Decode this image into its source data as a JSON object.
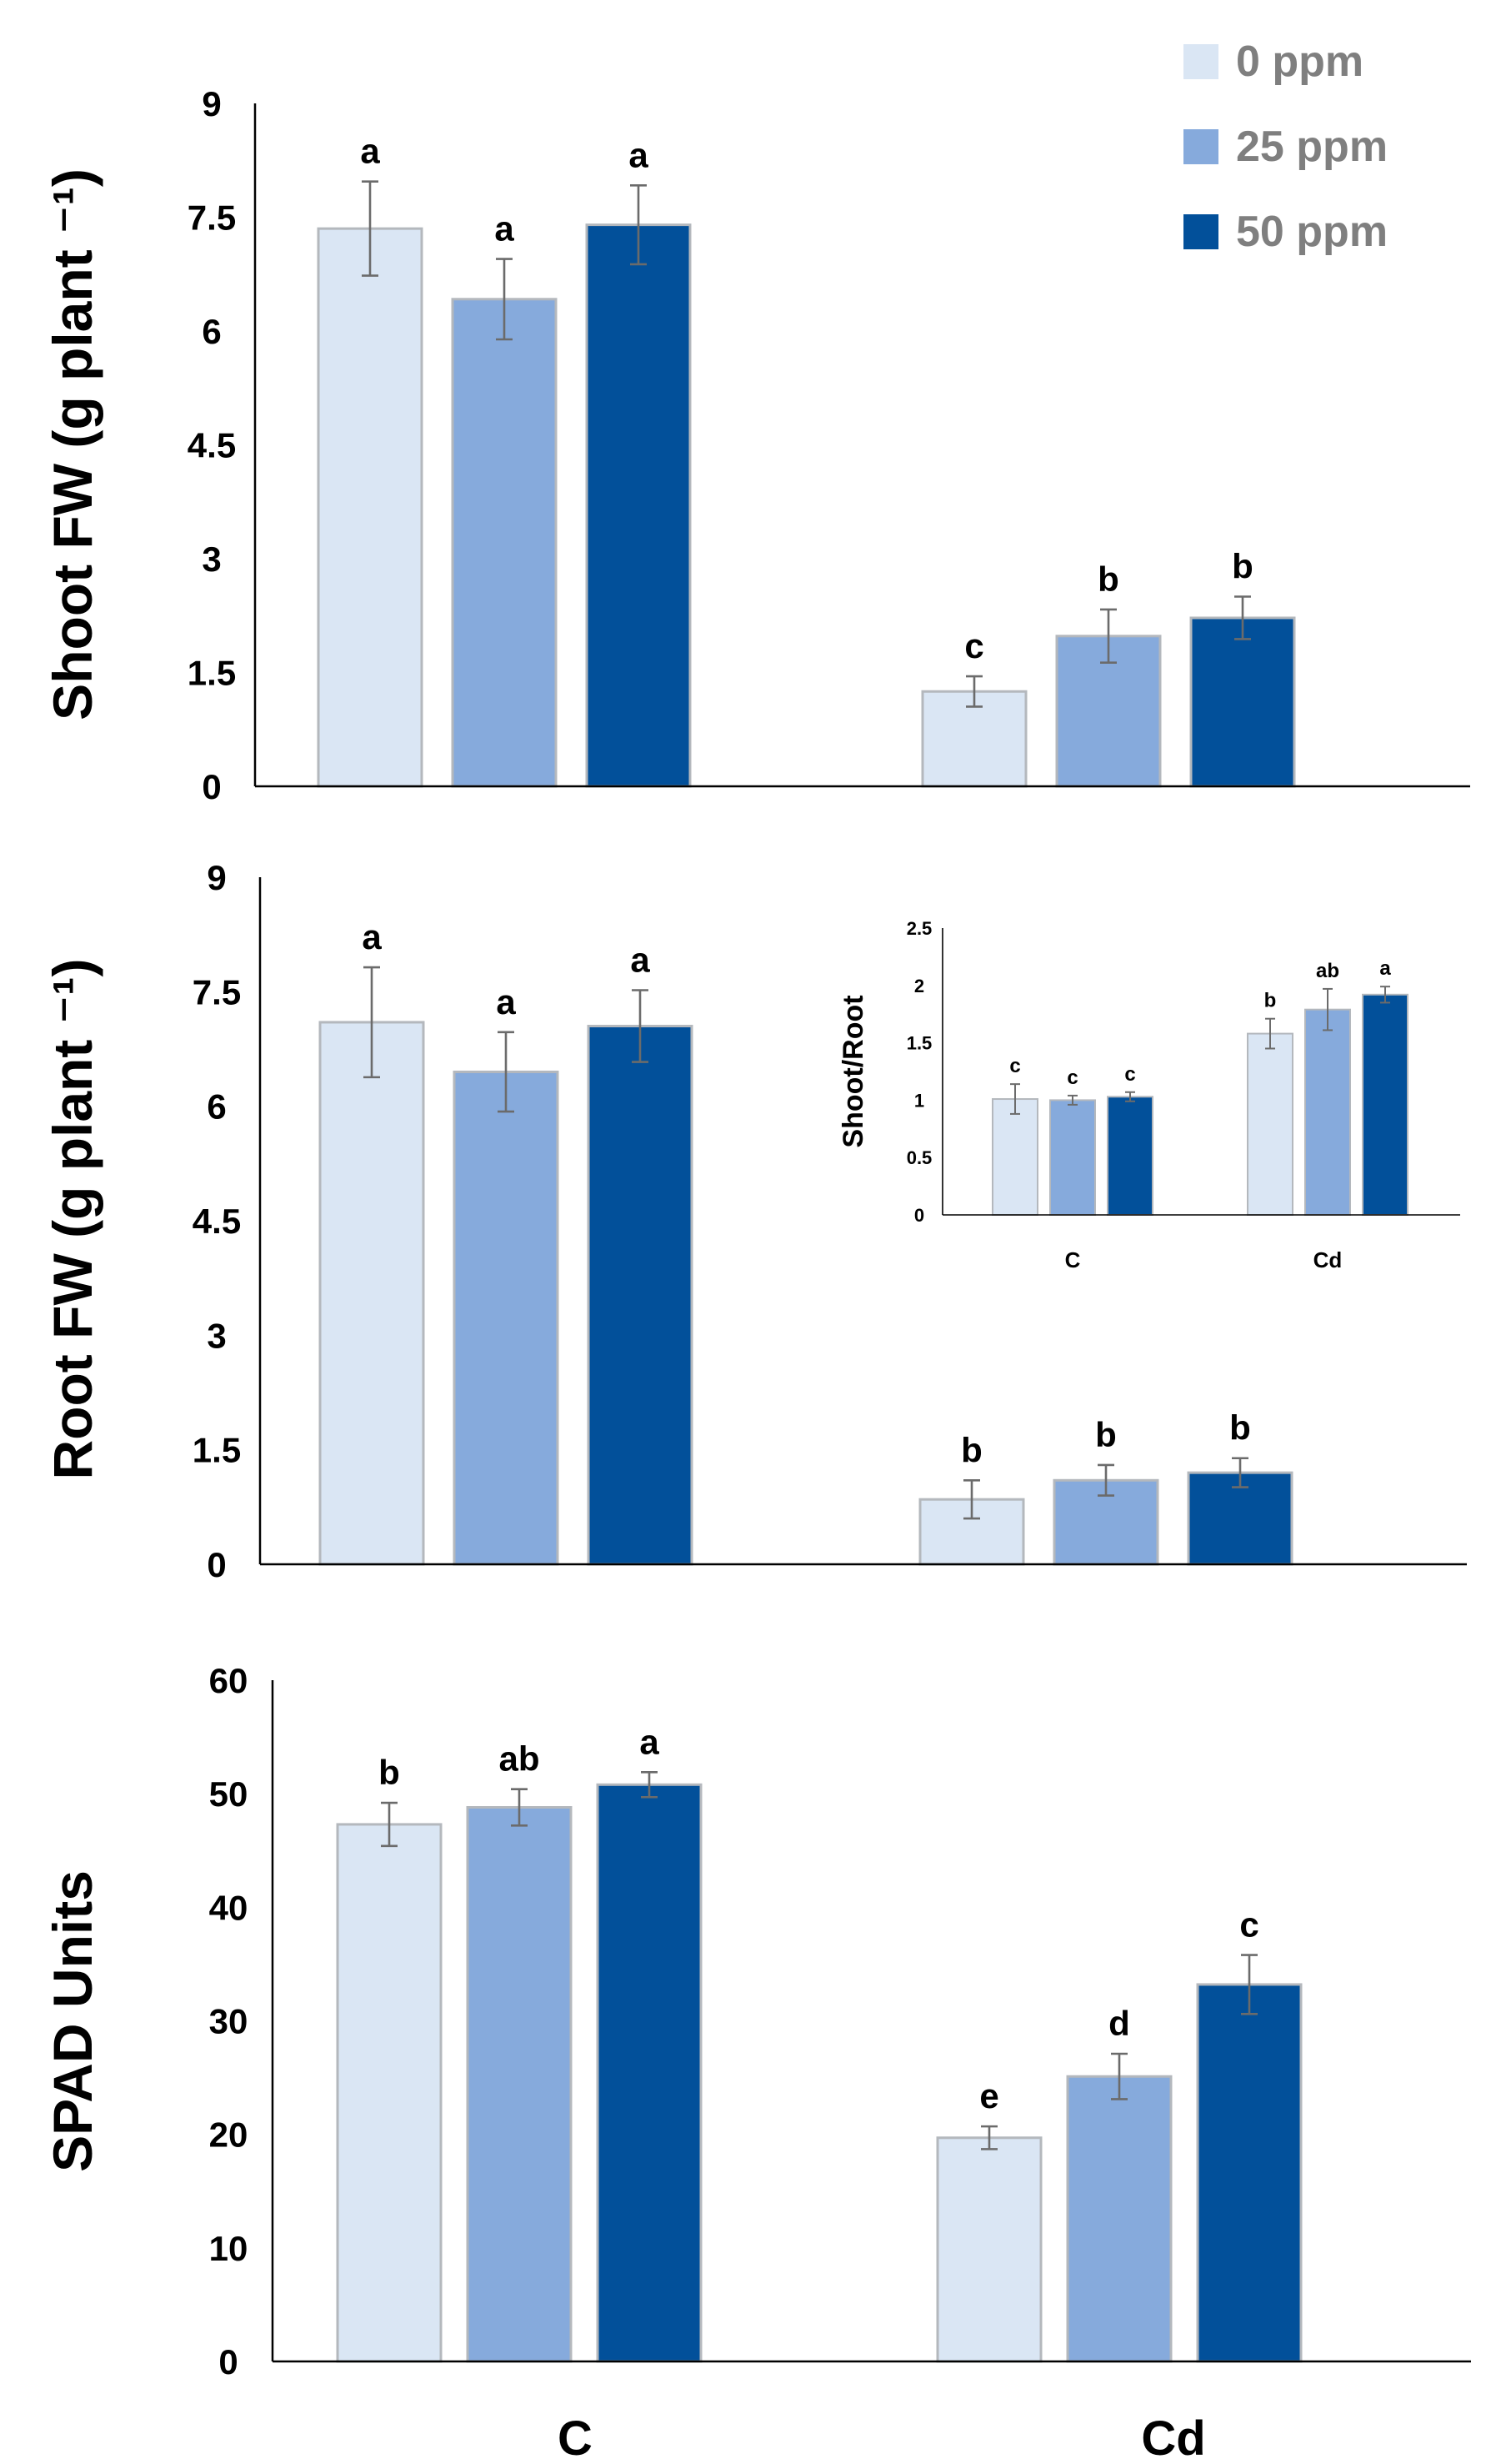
{
  "legend": [
    {
      "label": "0 ppm",
      "color": "#dae6f4"
    },
    {
      "label": "25 ppm",
      "color": "#86aadc"
    },
    {
      "label": "50 ppm",
      "color": "#02509a"
    }
  ],
  "bottom_categories": [
    "C",
    "Cd"
  ],
  "chart_data": [
    {
      "type": "bar",
      "id": "shoot",
      "ylabel": "Shoot FW (g plant ⁻¹)",
      "ylim": [
        0,
        9
      ],
      "ytick_labels": [
        "0",
        "1.5",
        "3",
        "4.5",
        "6",
        "7.5",
        "9"
      ],
      "categories": [
        "C",
        "Cd"
      ],
      "series": [
        {
          "name": "0 ppm",
          "values": [
            7.35,
            1.25
          ],
          "errors": [
            0.62,
            0.2
          ],
          "letters": [
            "a",
            "c"
          ]
        },
        {
          "name": "25 ppm",
          "values": [
            6.42,
            1.98
          ],
          "errors": [
            0.53,
            0.35
          ],
          "letters": [
            "a",
            "b"
          ]
        },
        {
          "name": "50 ppm",
          "values": [
            7.4,
            2.22
          ],
          "errors": [
            0.52,
            0.28
          ],
          "letters": [
            "a",
            "b"
          ]
        }
      ]
    },
    {
      "type": "bar",
      "id": "root",
      "ylabel": "Root FW (g plant ⁻¹)",
      "ylim": [
        0,
        9
      ],
      "ytick_labels": [
        "0",
        "1.5",
        "3",
        "4.5",
        "6",
        "7.5",
        "9"
      ],
      "categories": [
        "C",
        "Cd"
      ],
      "series": [
        {
          "name": "0 ppm",
          "values": [
            7.1,
            0.85
          ],
          "errors": [
            0.72,
            0.25
          ],
          "letters": [
            "a",
            "b"
          ]
        },
        {
          "name": "25 ppm",
          "values": [
            6.45,
            1.1
          ],
          "errors": [
            0.52,
            0.2
          ],
          "letters": [
            "a",
            "b"
          ]
        },
        {
          "name": "50 ppm",
          "values": [
            7.05,
            1.2
          ],
          "errors": [
            0.47,
            0.19
          ],
          "letters": [
            "a",
            "b"
          ]
        }
      ]
    },
    {
      "type": "bar",
      "id": "inset",
      "ylabel": "Shoot/Root",
      "ylim": [
        0,
        2.5
      ],
      "ytick_labels": [
        "0",
        "0.5",
        "1",
        "1.5",
        "2",
        "2.5"
      ],
      "categories": [
        "C",
        "Cd"
      ],
      "series": [
        {
          "name": "0 ppm",
          "values": [
            1.01,
            1.58
          ],
          "errors": [
            0.13,
            0.13
          ],
          "letters": [
            "c",
            "b"
          ]
        },
        {
          "name": "25 ppm",
          "values": [
            1.0,
            1.79
          ],
          "errors": [
            0.04,
            0.18
          ],
          "letters": [
            "c",
            "ab"
          ]
        },
        {
          "name": "50 ppm",
          "values": [
            1.03,
            1.92
          ],
          "errors": [
            0.04,
            0.07
          ],
          "letters": [
            "c",
            "a"
          ]
        }
      ]
    },
    {
      "type": "bar",
      "id": "spad",
      "ylabel": "SPAD Units",
      "ylim": [
        0,
        60
      ],
      "ytick_labels": [
        "0",
        "10",
        "20",
        "30",
        "40",
        "50",
        "60"
      ],
      "categories": [
        "C",
        "Cd"
      ],
      "series": [
        {
          "name": "0 ppm",
          "values": [
            47.3,
            19.7
          ],
          "errors": [
            1.9,
            1.0
          ],
          "letters": [
            "b",
            "e"
          ]
        },
        {
          "name": "25 ppm",
          "values": [
            48.8,
            25.1
          ],
          "errors": [
            1.6,
            2.0
          ],
          "letters": [
            "ab",
            "d"
          ]
        },
        {
          "name": "50 ppm",
          "values": [
            50.8,
            33.2
          ],
          "errors": [
            1.1,
            2.6
          ],
          "letters": [
            "a",
            "c"
          ]
        }
      ]
    }
  ]
}
